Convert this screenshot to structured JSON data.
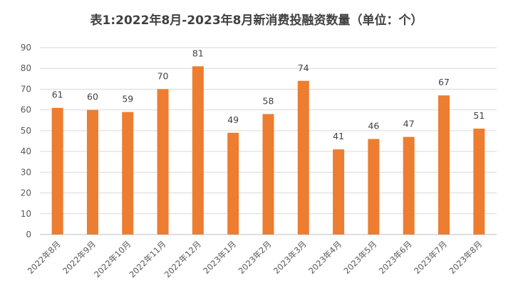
{
  "chart_data": {
    "type": "bar",
    "title": "表1:2022年8月-2023年8月新消费投融资数量（单位：个）",
    "categories": [
      "2022年8月",
      "2022年9月",
      "2022年10月",
      "2022年11月",
      "2022年12月",
      "2023年1月",
      "2023年2月",
      "2023年3月",
      "2023年4月",
      "2023年5月",
      "2023年6月",
      "2023年7月",
      "2023年8月"
    ],
    "values": [
      61,
      60,
      59,
      70,
      81,
      49,
      58,
      74,
      41,
      46,
      47,
      67,
      51
    ],
    "ylim": [
      0,
      90
    ],
    "yticks": [
      0,
      10,
      20,
      30,
      40,
      50,
      60,
      70,
      80,
      90
    ],
    "grid": true,
    "bar_color": "#ED7D31",
    "xlabel": "",
    "ylabel": ""
  }
}
